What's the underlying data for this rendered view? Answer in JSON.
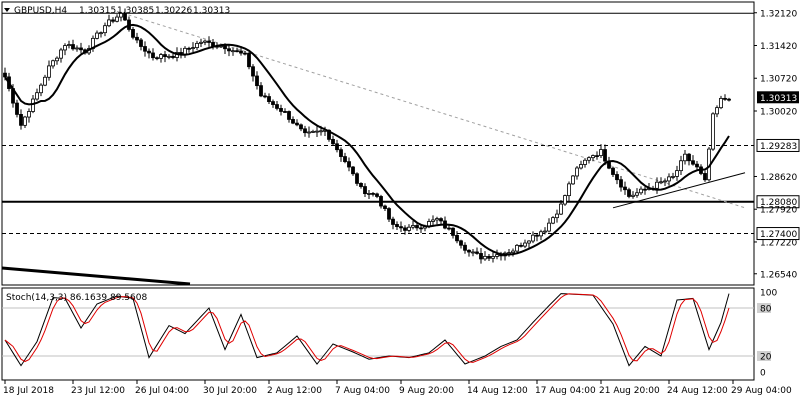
{
  "chart_data": [
    {
      "type": "candlestick",
      "header": {
        "symbol": "GBPUSD,H4",
        "open": "1.30315",
        "high": "1.30385",
        "low": "1.30226",
        "close": "1.30313"
      },
      "price_axis": {
        "ylim": [
          1.263,
          1.3235
        ],
        "ticks": [
          "1.32120",
          "1.31420",
          "1.30720",
          "1.30020",
          "1.28620",
          "1.27920",
          "1.27220",
          "1.26540"
        ]
      },
      "levels": [
        {
          "value": 1.3211,
          "label": "",
          "style": "solid-thin"
        },
        {
          "value": 1.29283,
          "label": "1.29283",
          "style": "dashed"
        },
        {
          "value": 1.2808,
          "label": "1.28080",
          "style": "solid-thick"
        },
        {
          "value": 1.274,
          "label": "1.27400",
          "style": "dashed"
        }
      ],
      "current_price": {
        "value": 1.30313,
        "label": "1.30313"
      },
      "ohlc_anchor_closes": [
        [
          0,
          1.3075
        ],
        [
          4,
          1.2972
        ],
        [
          8,
          1.304
        ],
        [
          11,
          1.3095
        ],
        [
          15,
          1.3145
        ],
        [
          20,
          1.313
        ],
        [
          25,
          1.3185
        ],
        [
          29,
          1.321
        ],
        [
          33,
          1.3148
        ],
        [
          37,
          1.3118
        ],
        [
          43,
          1.3122
        ],
        [
          49,
          1.315
        ],
        [
          55,
          1.314
        ],
        [
          60,
          1.312
        ],
        [
          64,
          1.3035
        ],
        [
          70,
          1.2998
        ],
        [
          75,
          1.295
        ],
        [
          80,
          1.296
        ],
        [
          85,
          1.2895
        ],
        [
          89,
          1.2835
        ],
        [
          93,
          1.282
        ],
        [
          97,
          1.2755
        ],
        [
          101,
          1.275
        ],
        [
          105,
          1.276
        ],
        [
          108,
          1.277
        ],
        [
          112,
          1.274
        ],
        [
          116,
          1.27
        ],
        [
          119,
          1.269
        ],
        [
          123,
          1.2695
        ],
        [
          127,
          1.2705
        ],
        [
          131,
          1.273
        ],
        [
          135,
          1.275
        ],
        [
          139,
          1.28
        ],
        [
          142,
          1.2865
        ],
        [
          146,
          1.2905
        ],
        [
          149,
          1.2915
        ],
        [
          152,
          1.287
        ],
        [
          156,
          1.282
        ],
        [
          159,
          1.283
        ],
        [
          163,
          1.2845
        ],
        [
          167,
          1.286
        ],
        [
          170,
          1.2905
        ],
        [
          173,
          1.288
        ],
        [
          175,
          1.285
        ],
        [
          177,
          1.299
        ],
        [
          179,
          1.3025
        ],
        [
          181,
          1.3031
        ]
      ],
      "trendlines": [
        {
          "kind": "descending-dashed",
          "from": [
            28,
            1.3215
          ],
          "to": [
            185,
            1.2795
          ]
        },
        {
          "kind": "ascending-support",
          "from": [
            152,
            1.2795
          ],
          "to": [
            185,
            1.287
          ]
        }
      ],
      "stochastic": {
        "label": "Stoch(14,3,3) 86.1639 89.5608",
        "ylim": [
          0,
          100
        ],
        "levels": [
          20,
          80
        ],
        "ticks": [
          "100",
          "80",
          "20",
          "0"
        ],
        "k_anchors": [
          [
            0,
            40
          ],
          [
            4,
            8
          ],
          [
            8,
            38
          ],
          [
            12,
            93
          ],
          [
            15,
            92
          ],
          [
            19,
            55
          ],
          [
            23,
            85
          ],
          [
            28,
            95
          ],
          [
            32,
            92
          ],
          [
            36,
            18
          ],
          [
            41,
            58
          ],
          [
            45,
            48
          ],
          [
            51,
            80
          ],
          [
            55,
            28
          ],
          [
            59,
            72
          ],
          [
            63,
            18
          ],
          [
            68,
            24
          ],
          [
            73,
            45
          ],
          [
            78,
            10
          ],
          [
            82,
            35
          ],
          [
            87,
            25
          ],
          [
            91,
            16
          ],
          [
            96,
            20
          ],
          [
            101,
            18
          ],
          [
            106,
            24
          ],
          [
            110,
            40
          ],
          [
            115,
            10
          ],
          [
            120,
            20
          ],
          [
            124,
            32
          ],
          [
            128,
            40
          ],
          [
            132,
            62
          ],
          [
            136,
            83
          ],
          [
            139,
            98
          ],
          [
            143,
            97
          ],
          [
            147,
            96
          ],
          [
            152,
            60
          ],
          [
            156,
            8
          ],
          [
            160,
            32
          ],
          [
            164,
            20
          ],
          [
            168,
            90
          ],
          [
            172,
            92
          ],
          [
            176,
            28
          ],
          [
            179,
            62
          ],
          [
            181,
            98
          ]
        ],
        "d_lag": 2
      },
      "x_axis": {
        "labels": [
          {
            "bar": 0,
            "text": "18 Jul 2018"
          },
          {
            "bar": 17,
            "text": "23 Jul 12:00"
          },
          {
            "bar": 33,
            "text": "26 Jul 04:00"
          },
          {
            "bar": 50,
            "text": "30 Jul 20:00"
          },
          {
            "bar": 66,
            "text": "2 Aug 12:00"
          },
          {
            "bar": 83,
            "text": "7 Aug 04:00"
          },
          {
            "bar": 99,
            "text": "9 Aug 20:00"
          },
          {
            "bar": 116,
            "text": "14 Aug 12:00"
          },
          {
            "bar": 133,
            "text": "17 Aug 04:00"
          },
          {
            "bar": 149,
            "text": "21 Aug 20:00"
          },
          {
            "bar": 166,
            "text": "24 Aug 12:00"
          },
          {
            "bar": 182,
            "text": "29 Aug 04:00"
          }
        ]
      },
      "colors": {
        "candle": "#000000",
        "ma": "#000000",
        "trend": "#a0a0a0",
        "stoch_k": "#000000",
        "stoch_d": "#e00000",
        "grid_level": "#c0c0c0",
        "current_price_bg": "#000000"
      }
    }
  ]
}
